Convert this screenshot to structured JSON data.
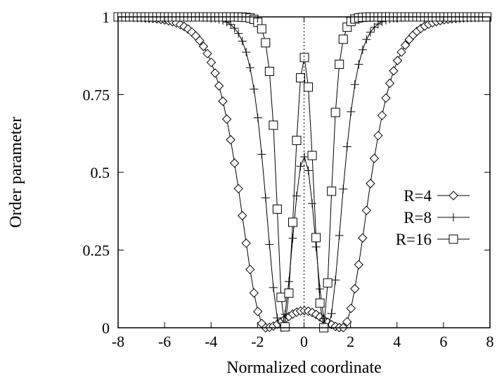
{
  "chart_data": {
    "type": "line",
    "title": "",
    "xlabel": "Normalized coordinate",
    "ylabel": "Order parameter",
    "xlim": [
      -8,
      8
    ],
    "ylim": [
      0,
      1
    ],
    "xticks": [
      -8,
      -6,
      -4,
      -2,
      0,
      2,
      4,
      6,
      8
    ],
    "yticks": [
      0,
      0.25,
      0.5,
      0.75,
      1
    ],
    "ytick_labels": [
      "0",
      "0.25",
      "0.5",
      "0.75",
      "1"
    ],
    "grid": false,
    "vertical_reference_line_x": 0,
    "legend_position": "right",
    "series": [
      {
        "name": "R=4",
        "marker": "diamond",
        "profile": {
          "center_peak": 0.055,
          "zero_at": 1.65,
          "rise_scale": 1.45
        }
      },
      {
        "name": "R=8",
        "marker": "plus",
        "profile": {
          "center_peak": 0.55,
          "zero_at": 1.0,
          "rise_scale": 0.85
        }
      },
      {
        "name": "R=16",
        "marker": "square",
        "profile": {
          "center_peak": 0.87,
          "zero_at": 0.85,
          "rise_scale": 0.42
        }
      }
    ],
    "sample_step": 0.167
  }
}
